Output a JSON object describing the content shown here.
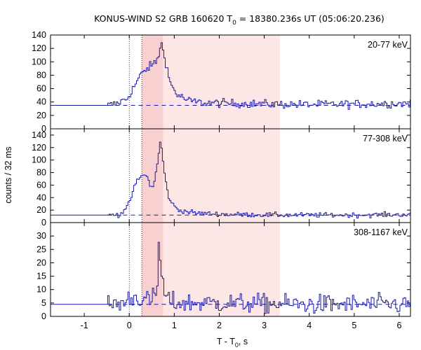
{
  "title_main": "KONUS-WIND S2 GRB 160620 T",
  "title_sub": "0",
  "title_rest": " = 18380.236s UT (05:06:20.236)",
  "xlabel_main": "T - T",
  "xlabel_sub": "0",
  "xlabel_rest": ", s",
  "ylabel": "counts / 32 ms",
  "colors": {
    "curve": "#1a1aa8",
    "background_line": "#1a1aa8",
    "shade_light": "#fde6e6",
    "shade_dark": "#f8d0d0",
    "axis": "#000000"
  },
  "chart_data": {
    "type": "line",
    "x_range": [
      -1.75,
      6.25
    ],
    "xticks": [
      "-1",
      "0",
      "1",
      "2",
      "3",
      "4",
      "5",
      "6"
    ],
    "xtick_values": [
      -1,
      0,
      1,
      2,
      3,
      4,
      5,
      6
    ],
    "bin_width_s": 0.032,
    "vlines_dotted": [
      0.0,
      0.28
    ],
    "shaded_light": [
      0.28,
      3.35
    ],
    "shaded_dark": [
      0.28,
      0.75
    ],
    "panels": [
      {
        "label": "20-77 keV",
        "ylim": [
          0,
          140
        ],
        "yticks": [
          "0",
          "20",
          "40",
          "60",
          "80",
          "100",
          "120",
          "140"
        ],
        "ytick_values": [
          0,
          20,
          40,
          60,
          80,
          100,
          120,
          140
        ],
        "background_level": 35,
        "prebin_level": 35,
        "data_start": -0.48,
        "segments": [
          {
            "t": -0.48,
            "v": 35
          },
          {
            "t": -0.3,
            "v": 37
          },
          {
            "t": -0.05,
            "v": 45
          },
          {
            "t": 0.1,
            "v": 62
          },
          {
            "t": 0.25,
            "v": 80
          },
          {
            "t": 0.4,
            "v": 90
          },
          {
            "t": 0.5,
            "v": 95
          },
          {
            "t": 0.6,
            "v": 100
          },
          {
            "t": 0.65,
            "v": 110
          },
          {
            "t": 0.72,
            "v": 126
          },
          {
            "t": 0.8,
            "v": 105
          },
          {
            "t": 0.9,
            "v": 70
          },
          {
            "t": 1.05,
            "v": 52
          },
          {
            "t": 1.3,
            "v": 42
          },
          {
            "t": 1.6,
            "v": 39
          },
          {
            "t": 2.2,
            "v": 38
          },
          {
            "t": 3.0,
            "v": 37
          },
          {
            "t": 4.0,
            "v": 36
          },
          {
            "t": 5.0,
            "v": 37
          },
          {
            "t": 6.2,
            "v": 38
          }
        ],
        "noise": 4.5
      },
      {
        "label": "77-308 keV",
        "ylim": [
          0,
          150
        ],
        "yticks": [
          "0",
          "20",
          "40",
          "60",
          "80",
          "100",
          "120",
          "140"
        ],
        "ytick_values": [
          0,
          20,
          40,
          60,
          80,
          100,
          120,
          140
        ],
        "background_level": 12,
        "prebin_level": 12,
        "data_start": -0.48,
        "segments": [
          {
            "t": -0.48,
            "v": 12
          },
          {
            "t": -0.2,
            "v": 13
          },
          {
            "t": 0.0,
            "v": 30
          },
          {
            "t": 0.1,
            "v": 55
          },
          {
            "t": 0.2,
            "v": 70
          },
          {
            "t": 0.3,
            "v": 75
          },
          {
            "t": 0.38,
            "v": 78
          },
          {
            "t": 0.48,
            "v": 55
          },
          {
            "t": 0.55,
            "v": 62
          },
          {
            "t": 0.62,
            "v": 92
          },
          {
            "t": 0.7,
            "v": 133
          },
          {
            "t": 0.78,
            "v": 80
          },
          {
            "t": 0.86,
            "v": 45
          },
          {
            "t": 0.95,
            "v": 30
          },
          {
            "t": 1.1,
            "v": 20
          },
          {
            "t": 1.5,
            "v": 15
          },
          {
            "t": 2.2,
            "v": 13
          },
          {
            "t": 3.5,
            "v": 12
          },
          {
            "t": 5.0,
            "v": 12
          },
          {
            "t": 6.2,
            "v": 13
          }
        ],
        "noise": 2.8
      },
      {
        "label": "308-1167 keV",
        "ylim": [
          0,
          35
        ],
        "yticks": [
          "0",
          "5",
          "10",
          "15",
          "20",
          "25",
          "30"
        ],
        "ytick_values": [
          0,
          5,
          10,
          15,
          20,
          25,
          30
        ],
        "background_level": 4.5,
        "prebin_level": 4.5,
        "data_start": -0.48,
        "segments": [
          {
            "t": -0.48,
            "v": 4.5
          },
          {
            "t": -0.1,
            "v": 5
          },
          {
            "t": 0.0,
            "v": 7
          },
          {
            "t": 0.2,
            "v": 7
          },
          {
            "t": 0.35,
            "v": 6
          },
          {
            "t": 0.5,
            "v": 6
          },
          {
            "t": 0.62,
            "v": 9
          },
          {
            "t": 0.66,
            "v": 29
          },
          {
            "t": 0.72,
            "v": 15
          },
          {
            "t": 0.8,
            "v": 7
          },
          {
            "t": 1.0,
            "v": 5
          },
          {
            "t": 2.0,
            "v": 5
          },
          {
            "t": 4.0,
            "v": 4.5
          },
          {
            "t": 6.2,
            "v": 4.5
          }
        ],
        "noise": 2.6
      }
    ]
  }
}
